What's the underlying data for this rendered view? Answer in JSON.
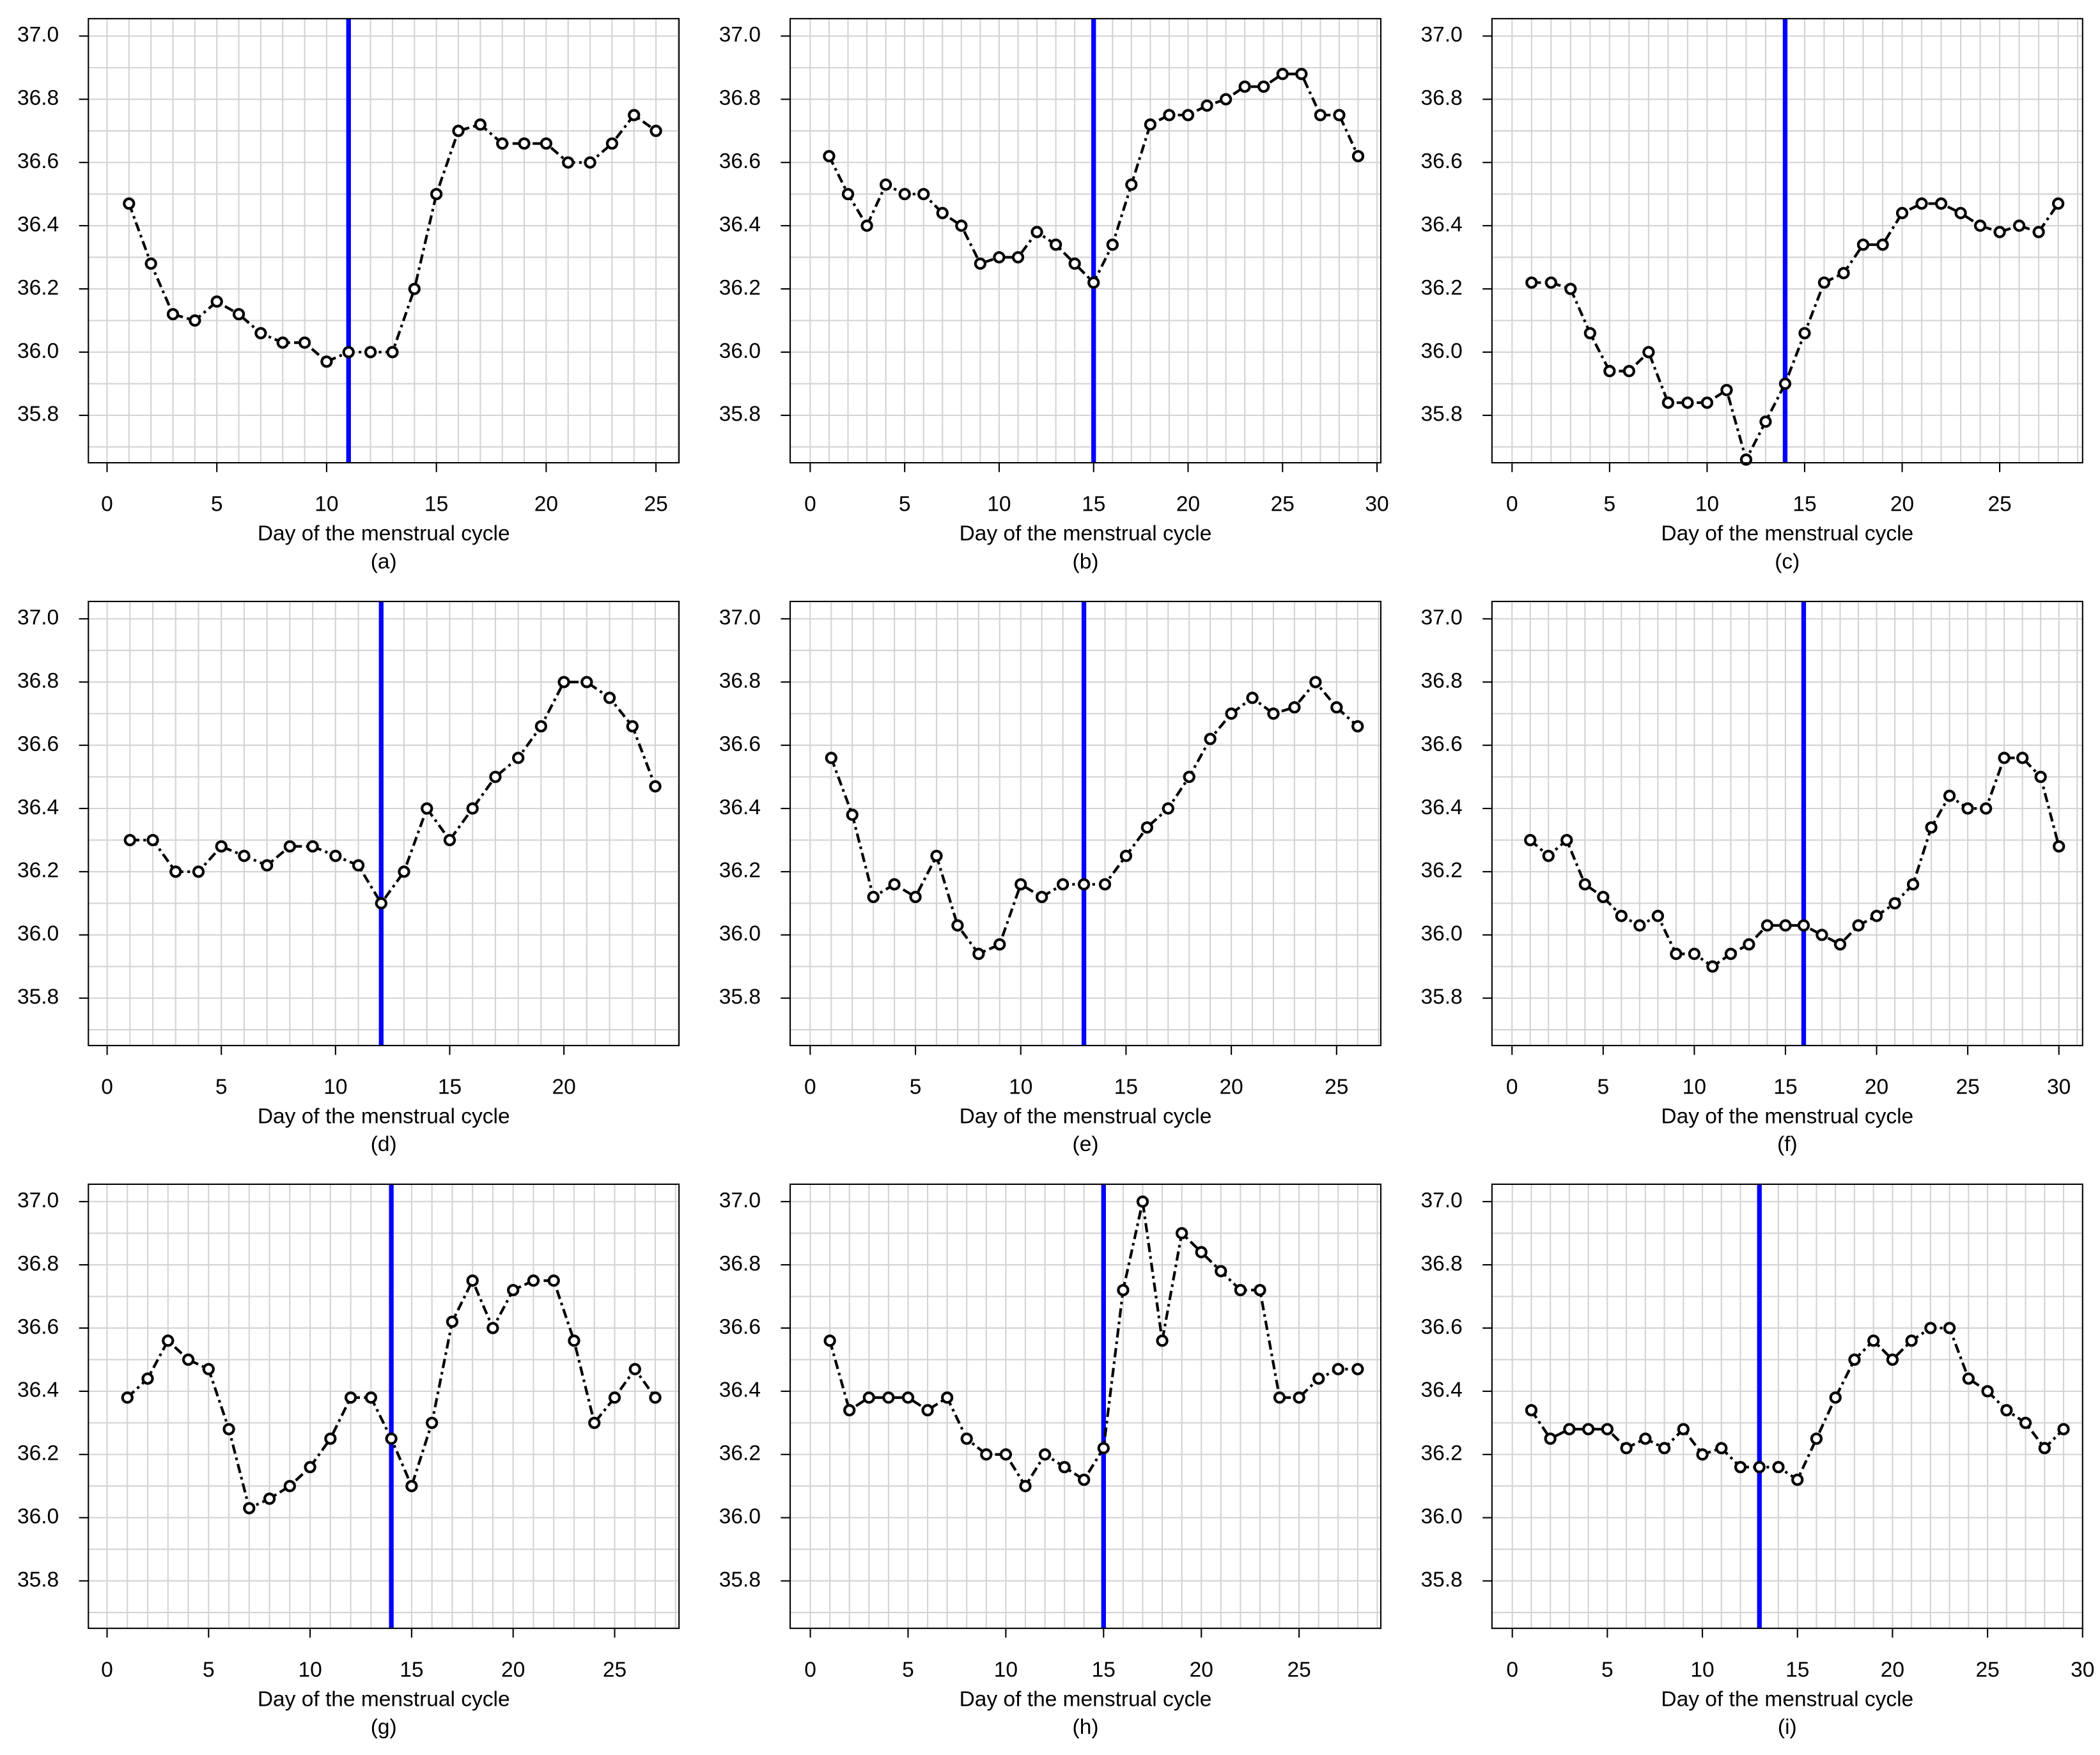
{
  "chart_data": [
    {
      "type": "line",
      "caption": "(a)",
      "x_label": "Day of the menstrual cycle",
      "color": "#000000",
      "vline_color": "#0000ff",
      "grid": true,
      "x": [
        1,
        2,
        3,
        4,
        5,
        6,
        7,
        8,
        9,
        10,
        11,
        12,
        13,
        14,
        15,
        16,
        17,
        18,
        19,
        20,
        21,
        22,
        23,
        24,
        25
      ],
      "values": [
        36.47,
        36.28,
        36.12,
        36.1,
        36.16,
        36.12,
        36.06,
        36.03,
        36.03,
        35.97,
        36.0,
        36.0,
        36.0,
        36.2,
        36.5,
        36.7,
        36.72,
        36.66,
        36.66,
        36.66,
        36.6,
        36.6,
        36.66,
        36.75,
        36.7
      ],
      "vline": 11,
      "xlim": [
        -0.85,
        26.05
      ],
      "ylim": [
        35.65,
        37.055
      ],
      "xticks": [
        0,
        5,
        10,
        15,
        20,
        25
      ],
      "yticks": [
        35.8,
        36.2,
        36.4,
        36.6,
        36.8,
        {
          "value": 36,
          "label": "36.0"
        },
        {
          "value": 37,
          "label": "37.0"
        }
      ],
      "xgrid": [
        0,
        1,
        2,
        3,
        4,
        5,
        6,
        7,
        8,
        9,
        10,
        11,
        12,
        13,
        14,
        15,
        16,
        17,
        18,
        19,
        20,
        21,
        22,
        23,
        24,
        25,
        26
      ],
      "ygrid": [
        35.7,
        35.8,
        35.9,
        36,
        36.1,
        36.2,
        36.3,
        36.4,
        36.5,
        36.6,
        36.7,
        36.8,
        36.9,
        37
      ]
    },
    {
      "type": "line",
      "caption": "(b)",
      "x_label": "Day of the menstrual cycle",
      "color": "#000000",
      "vline_color": "#0000ff",
      "grid": true,
      "x": [
        1,
        2,
        3,
        4,
        5,
        6,
        7,
        8,
        9,
        10,
        11,
        12,
        13,
        14,
        15,
        16,
        17,
        18,
        19,
        20,
        21,
        22,
        23,
        24,
        25,
        26,
        27,
        28,
        29
      ],
      "values": [
        36.62,
        36.5,
        36.4,
        36.53,
        36.5,
        36.5,
        36.44,
        36.4,
        36.28,
        36.3,
        36.3,
        36.38,
        36.34,
        36.28,
        36.22,
        36.34,
        36.53,
        36.72,
        36.75,
        36.75,
        36.78,
        36.8,
        36.84,
        36.84,
        36.88,
        36.88,
        36.75,
        36.75,
        36.62
      ],
      "vline": 15,
      "xlim": [
        -1.06,
        30.2
      ],
      "ylim": [
        35.65,
        37.055
      ],
      "xticks": [
        0,
        5,
        10,
        15,
        20,
        25,
        30
      ],
      "yticks": [
        35.8,
        36.2,
        36.4,
        36.6,
        36.8,
        {
          "value": 36,
          "label": "36.0"
        },
        {
          "value": 37,
          "label": "37.0"
        }
      ],
      "xgrid": [
        0,
        1,
        2,
        3,
        4,
        5,
        6,
        7,
        8,
        9,
        10,
        11,
        12,
        13,
        14,
        15,
        16,
        17,
        18,
        19,
        20,
        21,
        22,
        23,
        24,
        25,
        26,
        27,
        28,
        29,
        30
      ],
      "ygrid": [
        35.7,
        35.8,
        35.9,
        36,
        36.1,
        36.2,
        36.3,
        36.4,
        36.5,
        36.6,
        36.7,
        36.8,
        36.9,
        37
      ]
    },
    {
      "type": "line",
      "caption": "(c)",
      "x_label": "Day of the menstrual cycle",
      "color": "#000000",
      "vline_color": "#0000ff",
      "grid": true,
      "x": [
        1,
        2,
        3,
        4,
        5,
        6,
        7,
        8,
        9,
        10,
        11,
        12,
        13,
        14,
        15,
        16,
        17,
        18,
        19,
        20,
        21,
        22,
        23,
        24,
        25,
        26,
        27,
        28
      ],
      "values": [
        36.22,
        36.22,
        36.2,
        36.06,
        35.94,
        35.94,
        36.0,
        35.84,
        35.84,
        35.84,
        35.88,
        35.66,
        35.78,
        35.9,
        36.06,
        36.22,
        36.25,
        36.34,
        36.34,
        36.44,
        36.47,
        36.47,
        36.44,
        36.4,
        36.38,
        36.4,
        36.38,
        36.47
      ],
      "vline": 14,
      "xlim": [
        -1.03,
        29.25
      ],
      "ylim": [
        35.65,
        37.055
      ],
      "xticks": [
        0,
        5,
        10,
        15,
        20,
        25
      ],
      "yticks": [
        35.8,
        36.2,
        36.4,
        36.6,
        36.8,
        {
          "value": 36,
          "label": "36.0"
        },
        {
          "value": 37,
          "label": "37.0"
        }
      ],
      "xgrid": [
        0,
        1,
        2,
        3,
        4,
        5,
        6,
        7,
        8,
        9,
        10,
        11,
        12,
        13,
        14,
        15,
        16,
        17,
        18,
        19,
        20,
        21,
        22,
        23,
        24,
        25,
        26,
        27,
        28,
        29
      ],
      "ygrid": [
        35.7,
        35.8,
        35.9,
        36,
        36.1,
        36.2,
        36.3,
        36.4,
        36.5,
        36.6,
        36.7,
        36.8,
        36.9,
        37
      ]
    },
    {
      "type": "line",
      "caption": "(d)",
      "x_label": "Day of the menstrual cycle",
      "color": "#000000",
      "vline_color": "#0000ff",
      "grid": true,
      "x": [
        1,
        2,
        3,
        4,
        5,
        6,
        7,
        8,
        9,
        10,
        11,
        12,
        13,
        14,
        15,
        16,
        17,
        18,
        19,
        20,
        21,
        22,
        23,
        24
      ],
      "values": [
        36.3,
        36.3,
        36.2,
        36.2,
        36.28,
        36.25,
        36.22,
        36.28,
        36.28,
        36.25,
        36.22,
        36.1,
        36.2,
        36.4,
        36.3,
        36.4,
        36.5,
        36.56,
        36.66,
        36.8,
        36.8,
        36.75,
        36.66,
        36.47
      ],
      "vline": 12,
      "xlim": [
        -0.82,
        25.04
      ],
      "ylim": [
        35.65,
        37.055
      ],
      "xticks": [
        0,
        5,
        10,
        15,
        20
      ],
      "yticks": [
        35.8,
        36.2,
        36.4,
        36.6,
        36.8,
        {
          "value": 36,
          "label": "36.0"
        },
        {
          "value": 37,
          "label": "37.0"
        }
      ],
      "xgrid": [
        0,
        1,
        2,
        3,
        4,
        5,
        6,
        7,
        8,
        9,
        10,
        11,
        12,
        13,
        14,
        15,
        16,
        17,
        18,
        19,
        20,
        21,
        22,
        23,
        24,
        25
      ],
      "ygrid": [
        35.7,
        35.8,
        35.9,
        36,
        36.1,
        36.2,
        36.3,
        36.4,
        36.5,
        36.6,
        36.7,
        36.8,
        36.9,
        37
      ]
    },
    {
      "type": "line",
      "caption": "(e)",
      "x_label": "Day of the menstrual cycle",
      "color": "#000000",
      "vline_color": "#0000ff",
      "grid": true,
      "x": [
        1,
        2,
        3,
        4,
        5,
        6,
        7,
        8,
        9,
        10,
        11,
        12,
        13,
        14,
        15,
        16,
        17,
        18,
        19,
        20,
        21,
        22,
        23,
        24,
        25,
        26
      ],
      "values": [
        36.56,
        36.38,
        36.12,
        36.16,
        36.12,
        36.25,
        36.03,
        35.94,
        35.97,
        36.16,
        36.12,
        36.16,
        36.16,
        36.16,
        36.25,
        36.34,
        36.4,
        36.5,
        36.62,
        36.7,
        36.75,
        36.7,
        36.72,
        36.8,
        36.72,
        36.66
      ],
      "vline": 13,
      "xlim": [
        -0.95,
        27.1
      ],
      "ylim": [
        35.65,
        37.055
      ],
      "xticks": [
        0,
        5,
        10,
        15,
        20,
        25
      ],
      "yticks": [
        35.8,
        36.2,
        36.4,
        36.6,
        36.8,
        {
          "value": 36,
          "label": "36.0"
        },
        {
          "value": 37,
          "label": "37.0"
        }
      ],
      "xgrid": [
        0,
        1,
        2,
        3,
        4,
        5,
        6,
        7,
        8,
        9,
        10,
        11,
        12,
        13,
        14,
        15,
        16,
        17,
        18,
        19,
        20,
        21,
        22,
        23,
        24,
        25,
        26,
        27
      ],
      "ygrid": [
        35.7,
        35.8,
        35.9,
        36,
        36.1,
        36.2,
        36.3,
        36.4,
        36.5,
        36.6,
        36.7,
        36.8,
        36.9,
        37
      ]
    },
    {
      "type": "line",
      "caption": "(f)",
      "x_label": "Day of the menstrual cycle",
      "color": "#000000",
      "vline_color": "#0000ff",
      "grid": true,
      "x": [
        1,
        2,
        3,
        4,
        5,
        6,
        7,
        8,
        9,
        10,
        11,
        12,
        13,
        14,
        15,
        16,
        17,
        18,
        19,
        20,
        21,
        22,
        23,
        24,
        25,
        26,
        27,
        28,
        29,
        30
      ],
      "values": [
        36.3,
        36.25,
        36.3,
        36.16,
        36.12,
        36.06,
        36.03,
        36.06,
        35.94,
        35.94,
        35.9,
        35.94,
        35.97,
        36.03,
        36.03,
        36.03,
        36.0,
        35.97,
        36.03,
        36.06,
        36.1,
        36.16,
        36.34,
        36.44,
        36.4,
        36.4,
        36.56,
        36.56,
        36.5,
        36.28
      ],
      "vline": 16,
      "xlim": [
        -1.1,
        31.3
      ],
      "ylim": [
        35.65,
        37.055
      ],
      "xticks": [
        0,
        5,
        10,
        15,
        20,
        25,
        30
      ],
      "yticks": [
        35.8,
        36.2,
        36.4,
        36.6,
        36.8,
        {
          "value": 36,
          "label": "36.0"
        },
        {
          "value": 37,
          "label": "37.0"
        }
      ],
      "xgrid": [
        0,
        1,
        2,
        3,
        4,
        5,
        6,
        7,
        8,
        9,
        10,
        11,
        12,
        13,
        14,
        15,
        16,
        17,
        18,
        19,
        20,
        21,
        22,
        23,
        24,
        25,
        26,
        27,
        28,
        29,
        30,
        31
      ],
      "ygrid": [
        35.7,
        35.8,
        35.9,
        36,
        36.1,
        36.2,
        36.3,
        36.4,
        36.5,
        36.6,
        36.7,
        36.8,
        36.9,
        37
      ]
    },
    {
      "type": "line",
      "caption": "(g)",
      "x_label": "Day of the menstrual cycle",
      "color": "#000000",
      "vline_color": "#0000ff",
      "grid": true,
      "x": [
        1,
        2,
        3,
        4,
        5,
        6,
        7,
        8,
        9,
        10,
        11,
        12,
        13,
        14,
        15,
        16,
        17,
        18,
        19,
        20,
        21,
        22,
        23,
        24,
        25,
        26,
        27
      ],
      "values": [
        36.38,
        36.44,
        36.56,
        36.5,
        36.47,
        36.28,
        36.03,
        36.06,
        36.1,
        36.16,
        36.25,
        36.38,
        36.38,
        36.25,
        36.1,
        36.3,
        36.62,
        36.75,
        36.6,
        36.72,
        36.75,
        36.75,
        36.56,
        36.3,
        36.38,
        36.47,
        36.38
      ],
      "vline": 14,
      "xlim": [
        -0.92,
        28.17
      ],
      "ylim": [
        35.65,
        37.055
      ],
      "xticks": [
        0,
        5,
        10,
        15,
        20,
        25
      ],
      "yticks": [
        35.8,
        36.2,
        36.4,
        36.6,
        36.8,
        {
          "value": 36,
          "label": "36.0"
        },
        {
          "value": 37,
          "label": "37.0"
        }
      ],
      "xgrid": [
        0,
        1,
        2,
        3,
        4,
        5,
        6,
        7,
        8,
        9,
        10,
        11,
        12,
        13,
        14,
        15,
        16,
        17,
        18,
        19,
        20,
        21,
        22,
        23,
        24,
        25,
        26,
        27,
        28
      ],
      "ygrid": [
        35.7,
        35.8,
        35.9,
        36,
        36.1,
        36.2,
        36.3,
        36.4,
        36.5,
        36.6,
        36.7,
        36.8,
        36.9,
        37
      ]
    },
    {
      "type": "line",
      "caption": "(h)",
      "x_label": "Day of the menstrual cycle",
      "color": "#000000",
      "vline_color": "#0000ff",
      "grid": true,
      "x": [
        1,
        2,
        3,
        4,
        5,
        6,
        7,
        8,
        9,
        10,
        11,
        12,
        13,
        14,
        15,
        16,
        17,
        18,
        19,
        20,
        21,
        22,
        23,
        24,
        25,
        26,
        27,
        28
      ],
      "values": [
        36.56,
        36.34,
        36.38,
        36.38,
        36.38,
        36.34,
        36.38,
        36.25,
        36.2,
        36.2,
        36.1,
        36.2,
        36.16,
        36.12,
        36.22,
        36.72,
        37.0,
        36.56,
        36.9,
        36.84,
        36.78,
        36.72,
        36.72,
        36.38,
        36.38,
        36.44,
        36.47,
        36.47
      ],
      "vline": 15,
      "xlim": [
        -1.03,
        29.18
      ],
      "ylim": [
        35.65,
        37.055
      ],
      "xticks": [
        0,
        5,
        10,
        15,
        20,
        25
      ],
      "yticks": [
        35.8,
        36.2,
        36.4,
        36.6,
        36.8,
        {
          "value": 36,
          "label": "36.0"
        },
        {
          "value": 37,
          "label": "37.0"
        }
      ],
      "xgrid": [
        0,
        1,
        2,
        3,
        4,
        5,
        6,
        7,
        8,
        9,
        10,
        11,
        12,
        13,
        14,
        15,
        16,
        17,
        18,
        19,
        20,
        21,
        22,
        23,
        24,
        25,
        26,
        27,
        28,
        29
      ],
      "ygrid": [
        35.7,
        35.8,
        35.9,
        36,
        36.1,
        36.2,
        36.3,
        36.4,
        36.5,
        36.6,
        36.7,
        36.8,
        36.9,
        37
      ]
    },
    {
      "type": "line",
      "caption": "(i)",
      "x_label": "Day of the menstrual cycle",
      "color": "#000000",
      "vline_color": "#0000ff",
      "grid": true,
      "x": [
        1,
        2,
        3,
        4,
        5,
        6,
        7,
        8,
        9,
        10,
        11,
        12,
        13,
        14,
        15,
        16,
        17,
        18,
        19,
        20,
        21,
        22,
        23,
        24,
        25,
        26,
        27,
        28,
        29
      ],
      "values": [
        36.34,
        36.25,
        36.28,
        36.28,
        36.28,
        36.22,
        36.25,
        36.22,
        36.28,
        36.2,
        36.22,
        36.16,
        36.16,
        36.16,
        36.12,
        36.25,
        36.38,
        36.5,
        36.56,
        36.5,
        36.56,
        36.6,
        36.6,
        36.44,
        36.4,
        36.34,
        36.3,
        36.22,
        36.28
      ],
      "vline": 13,
      "xlim": [
        -1.07,
        30.0
      ],
      "ylim": [
        35.65,
        37.055
      ],
      "xticks": [
        0,
        5,
        10,
        15,
        20,
        25,
        30
      ],
      "yticks": [
        35.8,
        36.2,
        36.4,
        36.6,
        36.8,
        {
          "value": 36,
          "label": "36.0"
        },
        {
          "value": 37,
          "label": "37.0"
        }
      ],
      "xgrid": [
        0,
        1,
        2,
        3,
        4,
        5,
        6,
        7,
        8,
        9,
        10,
        11,
        12,
        13,
        14,
        15,
        16,
        17,
        18,
        19,
        20,
        21,
        22,
        23,
        24,
        25,
        26,
        27,
        28,
        29,
        30
      ],
      "ygrid": [
        35.7,
        35.8,
        35.9,
        36,
        36.1,
        36.2,
        36.3,
        36.4,
        36.5,
        36.6,
        36.7,
        36.8,
        36.9,
        37
      ]
    }
  ]
}
